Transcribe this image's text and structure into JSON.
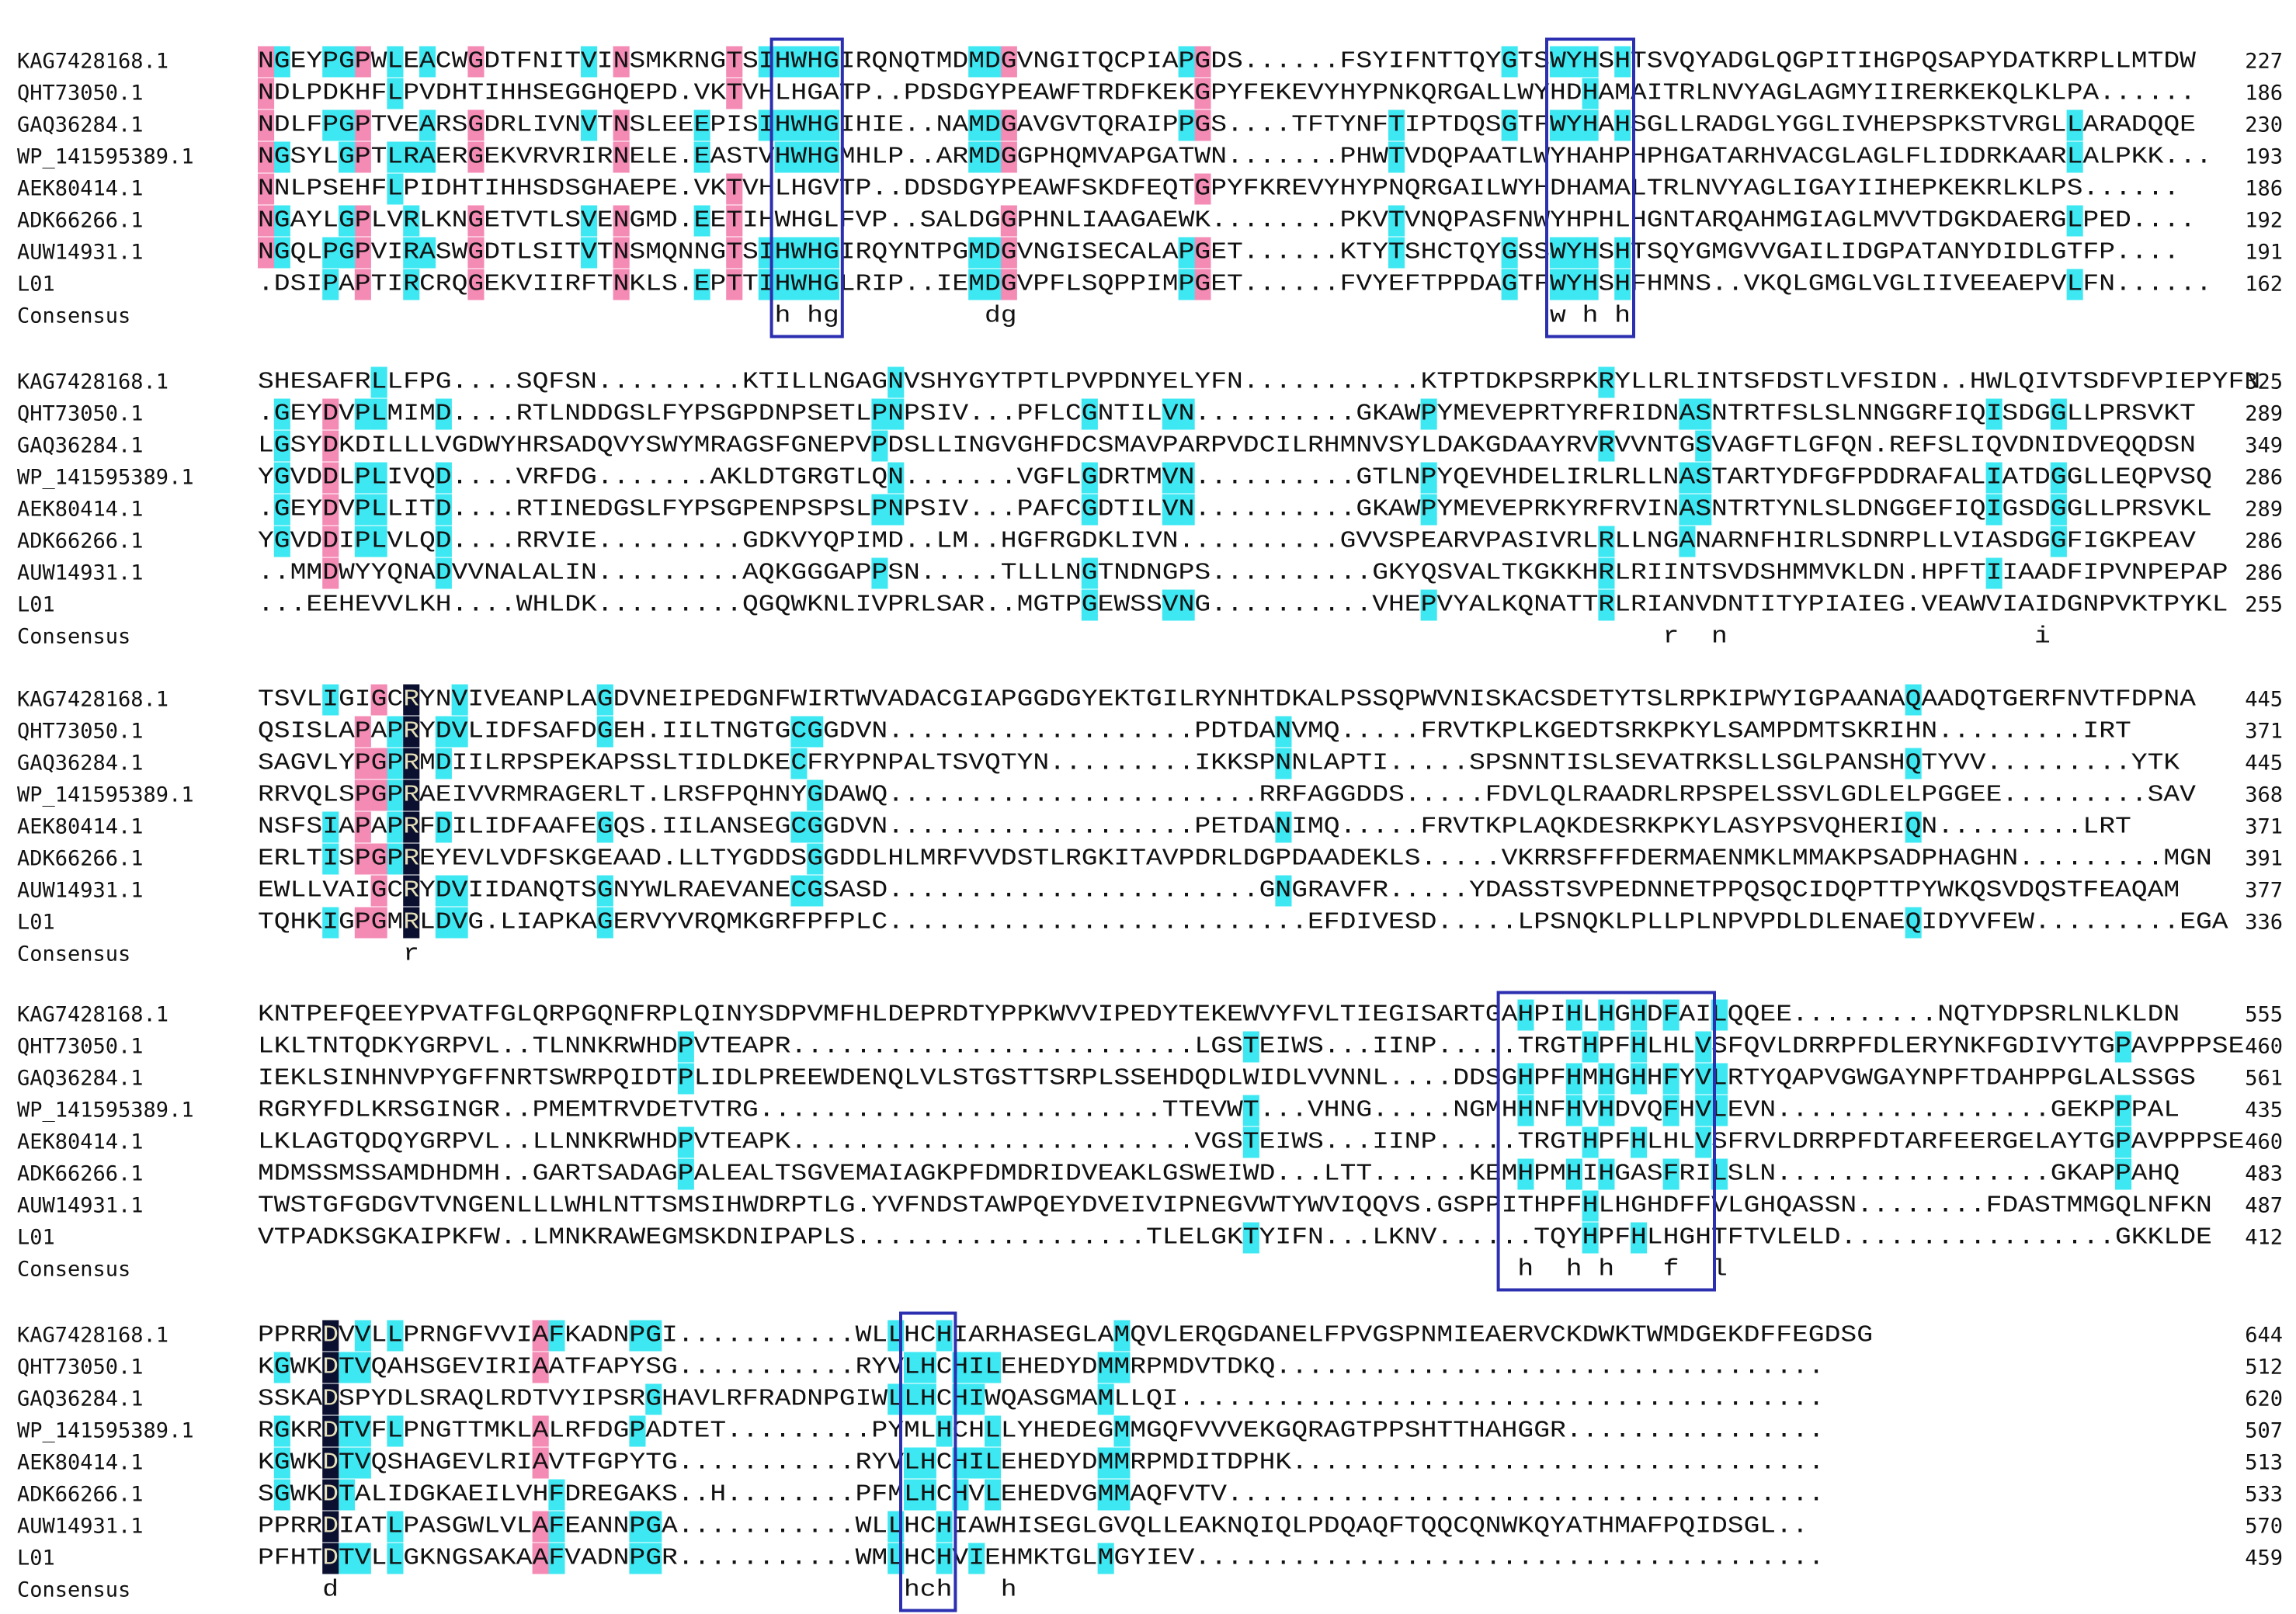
{
  "consensus_label": "Consensus",
  "blocks": [
    {
      "rows": [
        {
          "name": "KAG7428168.1",
          "seq": "NGEYPGPWLEACWGDTFNITVINSMKRNGTSIHWHGIRQNQTMDMDGVNGITQCPIAPGDS......FSYIFNTTQYGTSWYHSHTSVQYADGLQGPITIHGPQSAPYDATKRPLLMTDW",
          "end": "227"
        },
        {
          "name": "QHT73050.1",
          "seq": "NDLPDKHFLPVDHTIHHSEGGHQEPD.VKTVHLHGATP..PDSDGYPEAWFTRDFKEKGPYFEKEVYHYPNKQRGALLWYHDHAMAITRLNVYAGLAGMYIIRERKEKQLKLPA......",
          "end": "186"
        },
        {
          "name": "GAQ36284.1",
          "seq": "NDLFPGPTVEARSGDRLIVNVTNSLEEEPISIHWHGIHIE..NAMDGAVGVTQRAIPPGS....TFTYNFTIPTDQSGTFWYHAHSGLLRADGLYGGLIVHEPSPKSTVRGLLARADQQE",
          "end": "230"
        },
        {
          "name": "WP_141595389.1",
          "seq": "NGSYLGPTLRAERGEKVRVRIRNELE.EASTVHWHGMHLP..ARMDGGPHQMVAPGATWN.......PHWTVDQPAATLWYHAHPHPHGATARHVACGLAGLFLIDDRKAARLALPKK...",
          "end": "193"
        },
        {
          "name": "AEK80414.1",
          "seq": "NNLPSEHFLPIDHTIHHSDSGHAEPE.VKTVHLHGVTP..DDSDGYPEAWFSKDFEQTGPYFKREVYHYPNQRGAILWYHDHAMALTRLNVYAGLIGAYIIHEPKEKRLKLPS......",
          "end": "186"
        },
        {
          "name": "ADK66266.1",
          "seq": "NGAYLGPLVRLKNGETVTLSVENGMD.EETIHWHGLFVP..SALDGGPHNLIAAGAEWK........PKVTVNQPASFNWYHPHLHGNTARQAHMGIAGLMVVTDGKDAERGLPED....",
          "end": "192"
        },
        {
          "name": "AUW14931.1",
          "seq": "NGQLPGPVIRASWGDTLSITVTNSMQNNGTSIHWHGIRQYNTPGMDGVNGISECALAPGET......KTYTSHCTQYGSSWYHSHTSQYGMGVVGAILIDGPATANYDIDLGTFP....",
          "end": "191"
        },
        {
          "name": "L01",
          "seq": ".DSIPAPTIRCRQGEKVIIRFTNKLS.EPTTIHWHGLRIP..IEMDGVPFLSQPPIMPGET......FVYEFTPPDAGTFWYHSHFHMNS..VKQLGMGLVGLIIVEEAEPVLFN......",
          "end": "162"
        }
      ],
      "consensus": "                                h hg         dg                                 w h h"
    },
    {
      "rows": [
        {
          "name": "KAG7428168.1",
          "seq": "SHESAFRLLFPG....SQFSN.........KTILLNGAGNVSHYGYTPTLPVPDNYELYFN...........KTPTDKPSRPKRYLLRLINTSFDSTLVFSIDN..HWLQIVTSDFVPIEPYFN",
          "end": "325"
        },
        {
          "name": "QHT73050.1",
          "seq": ".GEYDVPLMIMD....RTLNDDGSLFYPSGPDNPSETLPNPSIV...PFLCGNTILVN..........GKAWPYMEVEPRTYRFRIDNASNTRTFSLSLNNGGRFIQISDGGLLPRSVKT",
          "end": "289"
        },
        {
          "name": "GAQ36284.1",
          "seq": "LGSYDKDILLLVGDWYHRSADQVYSWYMRAGSFGNEPVPDSLLINGVGHFDCSMAVPARPVDCILRHMNVSYLDAKGDAAYRVRVVNTGSVAGFTLGFQN.REFSLIQVDNIDVEQQDSN",
          "end": "349"
        },
        {
          "name": "WP_141595389.1",
          "seq": "YGVDDLPLIVQD....VRFDG.......AKLDTGRGTLQN.......VGFLGDRTMVN..........GTLNPYQEVHDELIRLRLLNASTARTYDFGFPDDRAFALIATDGGLLEQPVSQ",
          "end": "286"
        },
        {
          "name": "AEK80414.1",
          "seq": ".GEYDVPLLITD....RTINEDGSLFYPSGPENPSPSLPNPSIV...PAFCGDTILVN..........GKAWPYMEVEPRKYRFRVINASNTRTYNLSLDNGGEFIQIGSDGGLLPRSVKL",
          "end": "289"
        },
        {
          "name": "ADK66266.1",
          "seq": "YGVDDIPLVLQD....RRVIE.........GDKVYQPIMD..LM..HGFRGDKLIVN..........GVVSPEARVPASIVRLRLLNGANARNFHIRLSDNRPLLVIASDGGFIGKPEAV",
          "end": "286"
        },
        {
          "name": "AUW14931.1",
          "seq": "..MMDWYYQNADVVNALALIN.........AQKGGGAPPSN.....TLLLNGTNDNGPS..........GKYQSVALTKGKKHRLRIINTSVDSHMMVKLDN.HPFTIIAADFIPVNPEPAP",
          "end": "286"
        },
        {
          "name": "L01",
          "seq": "...EEHEVVLKH....WHLDK.........QGQWKNLIVPRLSAR..MGTPGEWSSVNG..........VHEPVYALKQNATTRLRIANVDNTITYPIAIEG.VEAWVIAIDGNPVKTPYKL",
          "end": "255"
        }
      ],
      "consensus": "                                                                                       r  n                   i"
    },
    {
      "rows": [
        {
          "name": "KAG7428168.1",
          "seq": "TSVLIGIGCRYNVIVEANPLAGDVNEIPEDGNFWIRTWVADACGIAPGGDGYEKTGILRYNHTDKALPSSQPWVNISKACSDETYTSLRPKIPWYIGPAANAQAADQTGERFNVTFDPNA",
          "end": "445"
        },
        {
          "name": "QHT73050.1",
          "seq": "QSISLAPAPRYDVLIDFSAFDGEH.IILTNGTGCGGDVN...................PDTDANVMQ.....FRVTKPLKGEDTSRKPKYLSAMPDMTSKRIHN.........IRT",
          "end": "371"
        },
        {
          "name": "GAQ36284.1",
          "seq": "SAGVLYPGPRMDIILRPSPEKAPSSLTIDLDKECFRYPNPALTSVQTYN.........IKKSPNNLAPTI.....SPSNNTISLSEVATRKSLLSGLPANSHQTYVV.........YTK",
          "end": "445"
        },
        {
          "name": "WP_141595389.1",
          "seq": "RRVQLSPGPRAEIVVRMRAGERLT.LRSFPQHNYGDAWQ.......................RRFAGGDDS.....FDVLQLRAADRLRPSPELSSVLGDLELPGGEE.........SAV",
          "end": "368"
        },
        {
          "name": "AEK80414.1",
          "seq": "NSFSIAPAPRFDILIDFAAFEGQS.IILANSEGCGGDVN...................PETDANIMQ.....FRVTKPLAQKDESRKPKYLASYPSVQHERIQN.........LRT",
          "end": "371"
        },
        {
          "name": "ADK66266.1",
          "seq": "ERLTISPGPREYEVLVDFSKGEAAD.LLTYGDDSGGDDLHLMRFVVDSTLRGKITAVPDRLDGPDAADEKLS.....VKRRSFFFDERMAENMKLMMAKPSADPHAGHN.........MGN",
          "end": "391"
        },
        {
          "name": "AUW14931.1",
          "seq": "EWLLVAIGCRYDVIIDANQTSGNYWLRAEVANECGSASD.......................GNGRAVFR.....YDASSTSVPEDNNETPPQSQCIDQPTTPYWKQSVDQSTFEAQAM",
          "end": "377"
        },
        {
          "name": "L01",
          "seq": "TQHKIGPGMRLDVG.LIAPKAGERVYVRQMKGRFPFPLC..........................EFDIVESD.....LPSNQKLPLLPLNPVPDLDLENAEQIDYVFEW.........EGA",
          "end": "336"
        }
      ],
      "consensus": "         r"
    },
    {
      "rows": [
        {
          "name": "KAG7428168.1",
          "seq": "KNTPEFQEEYPVATFGLQRPGQNFRPLQINYSDPVMFHLDEPRDTYPPKWVVIPEDYTEKEWVYFVLTIEGISARTGAHPIHLHGHDFAILQQEE.........NQTYDPSRLNLKLDN",
          "end": "555"
        },
        {
          "name": "QHT73050.1",
          "seq": "LKLTNTQDKYGRPVL..TLNNKRWHDPVTEAPR.........................LGSTEIWS...IINP.....TRGTHPFHLHLVSFQVLDRRPFDLERYNKFGDIVYTGPAVPPPSE",
          "end": "460"
        },
        {
          "name": "GAQ36284.1",
          "seq": "IEKLSINHNVPYGFFNRTSWRPQIDTPLIDLPREEWDENQLVLSTGSTTSRPLSSEHDQDLWIDLVVNNL....DDSGHPFHMHGHHFYVLRTYQAPVGWGAYNPFTDAHPPGLALSSGS",
          "end": "561"
        },
        {
          "name": "WP_141595389.1",
          "seq": "RGRYFDLKRSGINGR..PMEMTRVDETVTRG.........................TTEVWT...VHNG.....NGMHHNFHVHDVQFHVLEVN.................GEKPPPAL",
          "end": "435"
        },
        {
          "name": "AEK80414.1",
          "seq": "LKLAGTQDQYGRPVL..LLNNKRWHDPVTEAPK.........................VGSTEIWS...IINP.....TRGTHPFHLHLVSFRVLDRRPFDTARFEERGELAYTGPAVPPPSE",
          "end": "460"
        },
        {
          "name": "ADK66266.1",
          "seq": "MDMSSMSSAMDHDMH..GARTSADAGPALEALTSGVEMAIAGKPFDMDRIDVEAKLGSWEIWD...LTT......KEMHPMHIHGASFRILSLN.................GKAPPAHQ",
          "end": "483"
        },
        {
          "name": "AUW14931.1",
          "seq": "TWSTGFGDGVTVNGENLLLWHLNTTSMSIHWDRPTLG.YVFNDSTAWPQEYDVEIVIPNEGVWTYWVIQQVS.GSPPITHPFHLHGHDFFVLGHQASSN........FDASTMMGQLNFKN",
          "end": "487"
        },
        {
          "name": "L01",
          "seq": "VTPADKSGKAIPKFW..LMNKRAWEGMSKDNIPAPLS..................TLELGKTYIFN...LKNV......TQYHPFHLHGHTFTVLELD.................GKKLDE",
          "end": "412"
        }
      ],
      "consensus": "                                                                              h  h h   f  l"
    },
    {
      "rows": [
        {
          "name": "KAG7428168.1",
          "seq": "PPRRDVVLLPRNGFVVIAFKADNPGI...........WLLHCHIARHASEGLAMQVLERQGDANELFPVGSPNMIEAERVCKDWKTWMDGEKDFFEGDSG",
          "end": "644"
        },
        {
          "name": "QHT73050.1",
          "seq": "KGWKDTVQAHSGEVIRIAATFAPYSG...........RYVLHCHILEHEDYDMMRPMDVTDKQ..................................",
          "end": "512"
        },
        {
          "name": "GAQ36284.1",
          "seq": "SSKADSPYDLSRAQLRDTVYIPSRGHAVLRFRADNPGIWLLHCHIWQASGMAMLLQI........................................",
          "end": "620"
        },
        {
          "name": "WP_141595389.1",
          "seq": "RGKRDTVFLPNGTTMKLALRFDGPADTET.........PYMLHCHLLYHEDEGMMGQFVVVEKGQRAGTPPSHTTHAHGGR................",
          "end": "507"
        },
        {
          "name": "AEK80414.1",
          "seq": "KGWKDTVQSHAGEVLRIAVTFGPYTG...........RYVLHCHILEHEDYDMMRPMDITDPHK.................................",
          "end": "513"
        },
        {
          "name": "ADK66266.1",
          "seq": "SGWKDTALIDGKAEILVHFDREGAKS..H........PFMLHCHVLEHEDVGMMAQFVTV.....................................",
          "end": "533"
        },
        {
          "name": "AUW14931.1",
          "seq": "PPRRDIATLPASGWLVLAFEANNPGA...........WLLHCHIAWHISEGLGVQLLEAKNQIQLPDQAQFTQQCQNWKQYATHMAFPQIDSGL..",
          "end": "570"
        },
        {
          "name": "L01",
          "seq": "PFHTDTVLLGKNGSAKAAFVADNPGR...........WMLHCHVIEHMKTGLMGYIEV.......................................",
          "end": "459"
        }
      ],
      "consensus": "    d                                   hch   h"
    }
  ]
}
